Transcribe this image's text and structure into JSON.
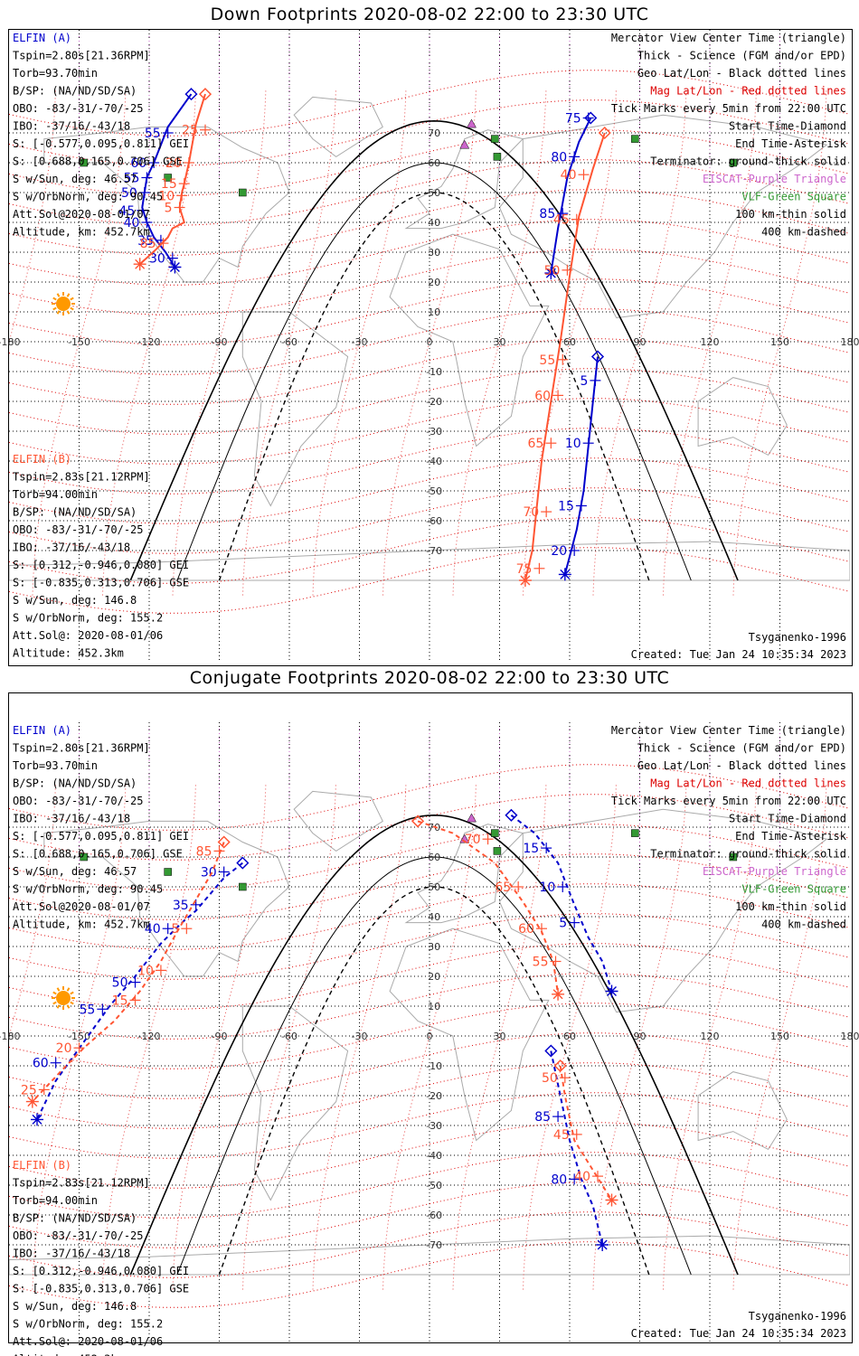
{
  "colors": {
    "elfin_a": "#0000cc",
    "elfin_b": "#ff5533",
    "mag_grid": "#dd0000",
    "geo_grid": "#000000",
    "eiscat": "#cc66cc",
    "vlf": "#339933",
    "land": "#aaaaaa"
  },
  "longitude_labels": [
    "-180",
    "-150",
    "-120",
    "-90",
    "-60",
    "-30",
    "0",
    "30",
    "60",
    "90",
    "120",
    "150",
    "180"
  ],
  "latitude_labels": [
    "70",
    "60",
    "50",
    "40",
    "30",
    "20",
    "10",
    "-10",
    "-20",
    "-30",
    "-40",
    "-50",
    "-60",
    "-70"
  ],
  "elfin_a_info": [
    "ELFIN (A)",
    "Tspin=2.80s[21.36RPM]",
    "Torb=93.70min",
    "B/SP: (NA/ND/SD/SA)",
    "OBO: -83/-31/-70/-25",
    "IBO: -37/16/-43/18",
    "S: [-0.577,0.095,0.811] GEI",
    "S: [0.688,0.165,0.706] GSE",
    "S w/Sun, deg: 46.57",
    "S w/OrbNorm, deg: 90.45",
    "Att.Sol@2020-08-01/07",
    "Altitude, km: 452.7km"
  ],
  "elfin_b_info": [
    "ELFIN (B)",
    "Tspin=2.83s[21.12RPM]",
    "Torb=94.00min",
    "B/SP: (NA/ND/SD/SA)",
    "OBO: -83/-31/-70/-25",
    "IBO: -37/16/-43/18",
    "S: [0.312,-0.946,0.080] GEI",
    "S: [-0.835,0.313,0.706] GSE",
    "S w/Sun, deg: 146.8",
    "S w/OrbNorm, deg: 155.2",
    "Att.Sol@: 2020-08-01/06",
    "Altitude: 452.3km"
  ],
  "legend": [
    {
      "text": "Mercator View Center Time (triangle)",
      "color": "#000000"
    },
    {
      "text": "Thick - Science (FGM and/or EPD)",
      "color": "#000000"
    },
    {
      "text": "Geo Lat/Lon - Black dotted lines",
      "color": "#000000"
    },
    {
      "text": "Mag Lat/Lon - Red dotted lines",
      "color": "#dd0000"
    },
    {
      "text": "Tick Marks every 5min from 22:00 UTC",
      "color": "#000000"
    },
    {
      "text": "Start Time-Diamond",
      "color": "#000000"
    },
    {
      "text": "End Time-Asterisk",
      "color": "#000000"
    },
    {
      "text": "Terminator: ground-thick solid",
      "color": "#000000"
    },
    {
      "text": "EISCAT-Purple Triangle",
      "color": "#cc66cc"
    },
    {
      "text": "VLF-Green Square",
      "color": "#339933"
    },
    {
      "text": "100 km-thin solid",
      "color": "#000000"
    },
    {
      "text": "400 km-dashed",
      "color": "#000000"
    }
  ],
  "footer": {
    "model": "Tsyganenko-1996",
    "created": "Created: Tue Jan 24 10:35:34 2023"
  },
  "panels": [
    {
      "title": "Down Footprints 2020-08-02 22:00 to 23:30 UTC",
      "a_track": [
        [
          -102,
          83
        ],
        [
          -112,
          72
        ],
        [
          -118,
          60
        ],
        [
          -121,
          55
        ],
        [
          -122,
          50
        ],
        [
          -123,
          45
        ],
        [
          -121,
          40
        ],
        [
          -118,
          35
        ],
        [
          -113,
          30
        ],
        [
          -109,
          25
        ]
      ],
      "a_ticks": [
        {
          "label": "55",
          "lon": -112,
          "lat": 70
        },
        {
          "label": "60",
          "lon": -118,
          "lat": 60
        },
        {
          "label": "55",
          "lon": -121,
          "lat": 55
        },
        {
          "label": "50",
          "lon": -122,
          "lat": 50
        },
        {
          "label": "45",
          "lon": -123,
          "lat": 44
        },
        {
          "label": "40",
          "lon": -121,
          "lat": 40
        },
        {
          "label": "35",
          "lon": -115,
          "lat": 34
        },
        {
          "label": "30",
          "lon": -110,
          "lat": 28
        }
      ],
      "b_track": [
        [
          -96,
          83
        ],
        [
          -100,
          73
        ],
        [
          -103,
          60
        ],
        [
          -105,
          53
        ],
        [
          -106,
          50
        ],
        [
          -107,
          45
        ],
        [
          -105,
          40
        ],
        [
          -110,
          38
        ],
        [
          -112,
          35
        ],
        [
          -117,
          31
        ],
        [
          -124,
          26
        ]
      ],
      "b_ticks": [
        {
          "label": "25",
          "lon": -96,
          "lat": 71
        },
        {
          "label": "20",
          "lon": -103,
          "lat": 60
        },
        {
          "label": "15",
          "lon": -105,
          "lat": 53
        },
        {
          "label": "10",
          "lon": -106,
          "lat": 49
        },
        {
          "label": "5",
          "lon": -107,
          "lat": 45
        },
        {
          "label": "85",
          "lon": -114,
          "lat": 33
        }
      ],
      "a2_track": [
        [
          69,
          75
        ],
        [
          64,
          67
        ],
        [
          59,
          55
        ],
        [
          55,
          38
        ],
        [
          52,
          23
        ]
      ],
      "a2_ticks": [
        {
          "label": "75",
          "lon": 68,
          "lat": 75
        },
        {
          "label": "80",
          "lon": 62,
          "lat": 62
        },
        {
          "label": "85",
          "lon": 57,
          "lat": 43
        }
      ],
      "a3_track": [
        [
          72,
          -5
        ],
        [
          70,
          -20
        ],
        [
          68,
          -35
        ],
        [
          66,
          -50
        ],
        [
          63,
          -63
        ],
        [
          58,
          -78
        ]
      ],
      "a3_ticks": [
        {
          "label": "5",
          "lon": 71,
          "lat": -13
        },
        {
          "label": "10",
          "lon": 68,
          "lat": -34
        },
        {
          "label": "15",
          "lon": 65,
          "lat": -55
        },
        {
          "label": "20",
          "lon": 62,
          "lat": -70
        }
      ],
      "b2_track": [
        [
          75,
          70
        ],
        [
          70,
          58
        ],
        [
          64,
          42
        ],
        [
          60,
          22
        ],
        [
          56,
          0
        ],
        [
          52,
          -20
        ],
        [
          48,
          -40
        ],
        [
          46,
          -55
        ],
        [
          44,
          -70
        ],
        [
          41,
          -80
        ]
      ],
      "b2_ticks": [
        {
          "label": "40",
          "lon": 66,
          "lat": 56
        },
        {
          "label": "45",
          "lon": 63,
          "lat": 41
        },
        {
          "label": "50",
          "lon": 59,
          "lat": 24
        },
        {
          "label": "55",
          "lon": 57,
          "lat": -6
        },
        {
          "label": "60",
          "lon": 55,
          "lat": -18
        },
        {
          "label": "65",
          "lon": 52,
          "lat": -34
        },
        {
          "label": "70",
          "lon": 50,
          "lat": -57
        },
        {
          "label": "75",
          "lon": 47,
          "lat": -76
        }
      ]
    },
    {
      "title": "Conjugate Footprints 2020-08-02 22:00 to 23:30 UTC",
      "a_track": [
        [
          -80,
          58
        ],
        [
          -88,
          53
        ],
        [
          -100,
          42
        ],
        [
          -106,
          38
        ],
        [
          -115,
          31
        ],
        [
          -126,
          20
        ],
        [
          -137,
          10
        ],
        [
          -148,
          -2
        ],
        [
          -160,
          -15
        ],
        [
          -168,
          -28
        ]
      ],
      "a_ticks": [
        {
          "label": "30",
          "lon": -88,
          "lat": 55
        },
        {
          "label": "35",
          "lon": -100,
          "lat": 44
        },
        {
          "label": "40",
          "lon": -112,
          "lat": 36
        },
        {
          "label": "50",
          "lon": -126,
          "lat": 18
        },
        {
          "label": "55",
          "lon": -140,
          "lat": 9
        },
        {
          "label": "60",
          "lon": -160,
          "lat": -9
        }
      ],
      "b_track": [
        [
          -88,
          65
        ],
        [
          -93,
          55
        ],
        [
          -102,
          43
        ],
        [
          -108,
          35
        ],
        [
          -115,
          25
        ],
        [
          -124,
          15
        ],
        [
          -135,
          5
        ],
        [
          -148,
          -4
        ],
        [
          -158,
          -12
        ],
        [
          -170,
          -22
        ]
      ],
      "b_ticks": [
        {
          "label": "85",
          "lon": -90,
          "lat": 62
        },
        {
          "label": "5",
          "lon": -104,
          "lat": 36
        },
        {
          "label": "10",
          "lon": -115,
          "lat": 22
        },
        {
          "label": "15",
          "lon": -126,
          "lat": 12
        },
        {
          "label": "20",
          "lon": -150,
          "lat": -4
        },
        {
          "label": "25",
          "lon": -165,
          "lat": -18
        }
      ],
      "a2_track": [
        [
          35,
          74
        ],
        [
          45,
          68
        ],
        [
          55,
          58
        ],
        [
          62,
          44
        ],
        [
          68,
          33
        ],
        [
          74,
          25
        ],
        [
          78,
          15
        ]
      ],
      "a2_ticks": [
        {
          "label": "15",
          "lon": 50,
          "lat": 63
        },
        {
          "label": "10",
          "lon": 57,
          "lat": 50
        },
        {
          "label": "5",
          "lon": 62,
          "lat": 38
        }
      ],
      "a3_track": [
        [
          52,
          -5
        ],
        [
          56,
          -20
        ],
        [
          60,
          -35
        ],
        [
          65,
          -48
        ],
        [
          70,
          -57
        ],
        [
          74,
          -70
        ]
      ],
      "a3_ticks": [
        {
          "label": "85",
          "lon": 55,
          "lat": -27
        },
        {
          "label": "80",
          "lon": 62,
          "lat": -48
        }
      ],
      "b2_track": [
        [
          -5,
          72
        ],
        [
          10,
          68
        ],
        [
          28,
          58
        ],
        [
          40,
          45
        ],
        [
          48,
          35
        ],
        [
          53,
          25
        ],
        [
          55,
          14
        ]
      ],
      "b2_ticks": [
        {
          "label": "70",
          "lon": 25,
          "lat": 66
        },
        {
          "label": "65",
          "lon": 38,
          "lat": 50
        },
        {
          "label": "60",
          "lon": 48,
          "lat": 36
        },
        {
          "label": "55",
          "lon": 54,
          "lat": 25
        }
      ],
      "b3_track": [
        [
          56,
          -10
        ],
        [
          58,
          -20
        ],
        [
          62,
          -35
        ],
        [
          70,
          -45
        ],
        [
          78,
          -55
        ]
      ],
      "b3_ticks": [
        {
          "label": "50",
          "lon": 58,
          "lat": -14
        },
        {
          "label": "45",
          "lon": 63,
          "lat": -33
        },
        {
          "label": "40",
          "lon": 72,
          "lat": -47
        }
      ]
    }
  ]
}
